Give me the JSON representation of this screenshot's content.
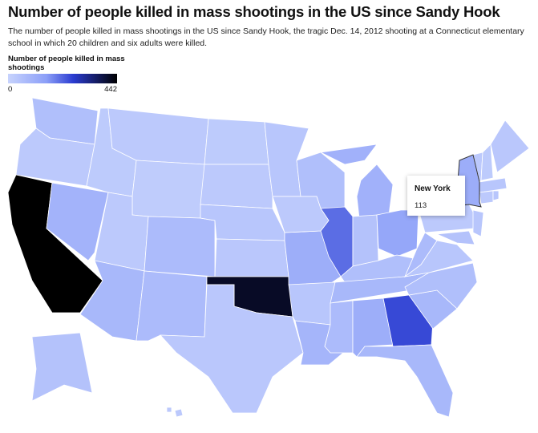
{
  "map": {
    "type": "choropleth",
    "title": "Number of people killed in mass shootings in the US since Sandy Hook",
    "subtitle": "The number of people killed in mass shootings in the US since Sandy Hook, the tragic Dec. 14, 2012 shooting at a Connecticut elementary school in which 20 children and six adults were killed.",
    "colorbar": {
      "title": "Number of people killed in mass shootings",
      "range": [
        0,
        442
      ]
    },
    "values": [
      60,
      30,
      442,
      95,
      25,
      30,
      20,
      30,
      80,
      70,
      70,
      25,
      30,
      40,
      35,
      410,
      35,
      40,
      110,
      40,
      90,
      60,
      210,
      100,
      30,
      50,
      130,
      60,
      80,
      70,
      110,
      250,
      80,
      80,
      60,
      40,
      70,
      113,
      30,
      50,
      40,
      30,
      25,
      35,
      40,
      30,
      40,
      50,
      30
    ],
    "tooltip": {
      "label": "New York",
      "value_index": 37
    }
  }
}
